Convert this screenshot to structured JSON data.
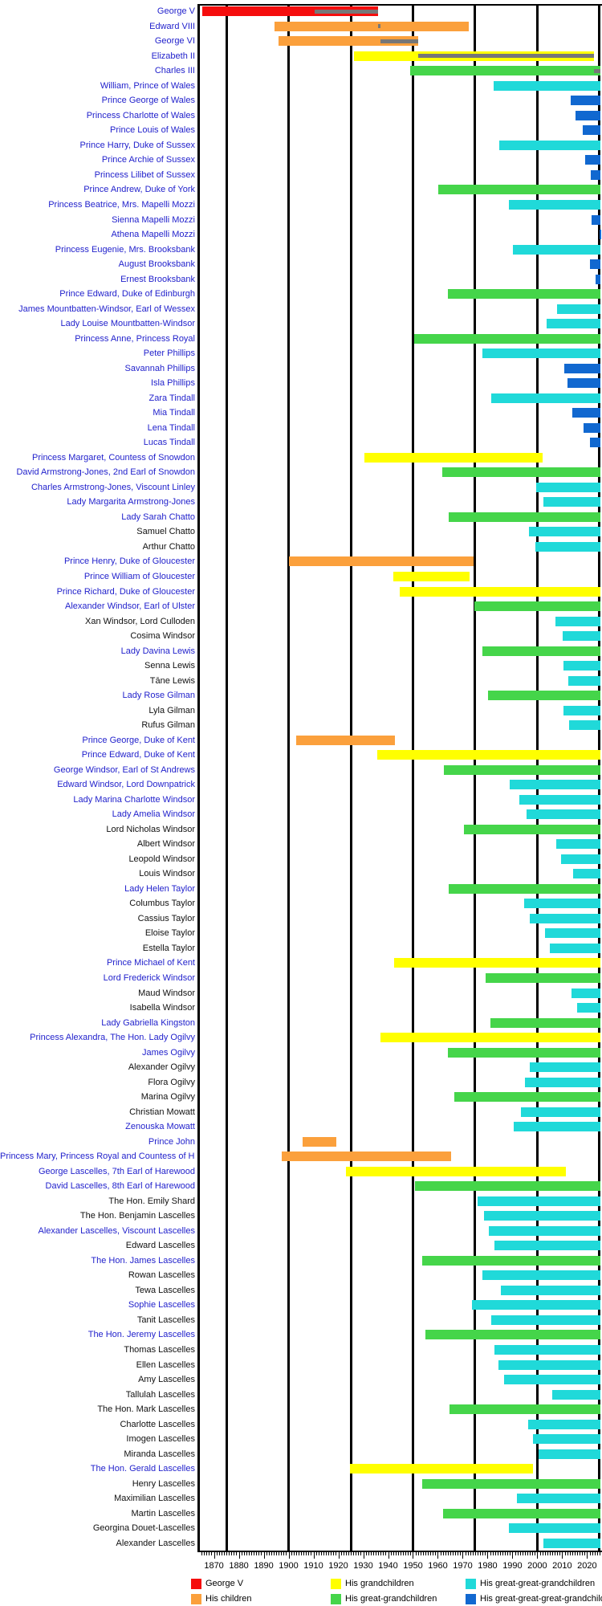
{
  "chart_data": {
    "type": "timeline",
    "x_axis": {
      "range": [
        1864,
        2026
      ],
      "tick_labels": [
        "1870",
        "1880",
        "1890",
        "1900",
        "1910",
        "1920",
        "1930",
        "1940",
        "1950",
        "1960",
        "1970",
        "1980",
        "1990",
        "2000",
        "2010",
        "2020"
      ],
      "gridline_years": [
        1875,
        1900,
        1925,
        1950,
        1975,
        2000,
        2025
      ],
      "minor_tick_step_years": 1
    },
    "alive_bar_end_year": 2025.5,
    "reign_overlay_color": "#777777",
    "legend": [
      {
        "label": "George V",
        "color": "#f50d0d"
      },
      {
        "label": "His children",
        "color": "#fba03c"
      },
      {
        "label": "His grandchildren",
        "color": "#ffff00"
      },
      {
        "label": "His great-grandchildren",
        "color": "#45d54a"
      },
      {
        "label": "His great-great-grandchildren",
        "color": "#20d9d9"
      },
      {
        "label": "His great-great-great-grandchildren",
        "color": "#1168d0"
      }
    ],
    "people": [
      {
        "name": "George V",
        "generation": 0,
        "born": 1865.4,
        "died": 1936.05,
        "linked": true,
        "reign": [
          1910.35,
          1936.05
        ]
      },
      {
        "name": "Edward VIII",
        "generation": 1,
        "born": 1894.45,
        "died": 1972.4,
        "linked": true,
        "reign": [
          1936.05,
          1936.92
        ]
      },
      {
        "name": "George VI",
        "generation": 1,
        "born": 1895.95,
        "died": 1952.1,
        "linked": true,
        "reign": [
          1936.92,
          1952.1
        ]
      },
      {
        "name": "Elizabeth II",
        "generation": 2,
        "born": 1926.3,
        "died": 2022.7,
        "linked": true,
        "reign": [
          1952.1,
          2022.7
        ]
      },
      {
        "name": "Charles III",
        "generation": 3,
        "born": 1948.85,
        "died": null,
        "linked": true,
        "reign": [
          2022.7,
          null
        ]
      },
      {
        "name": "William, Prince of Wales",
        "generation": 4,
        "born": 1982.45,
        "died": null,
        "linked": true
      },
      {
        "name": "Prince George of Wales",
        "generation": 5,
        "born": 2013.55,
        "died": null,
        "linked": true
      },
      {
        "name": "Princess Charlotte of Wales",
        "generation": 5,
        "born": 2015.35,
        "died": null,
        "linked": true
      },
      {
        "name": "Prince Louis of Wales",
        "generation": 5,
        "born": 2018.3,
        "died": null,
        "linked": true
      },
      {
        "name": "Prince Harry, Duke of Sussex",
        "generation": 4,
        "born": 1984.7,
        "died": null,
        "linked": true
      },
      {
        "name": "Prince Archie of Sussex",
        "generation": 5,
        "born": 2019.35,
        "died": null,
        "linked": true
      },
      {
        "name": "Princess Lilibet of Sussex",
        "generation": 5,
        "born": 2021.4,
        "died": null,
        "linked": true
      },
      {
        "name": "Prince Andrew, Duke of York",
        "generation": 3,
        "born": 1960.1,
        "died": null,
        "linked": true
      },
      {
        "name": "Princess Beatrice, Mrs. Mapelli Mozzi",
        "generation": 4,
        "born": 1988.6,
        "died": null,
        "linked": true
      },
      {
        "name": "Sienna Mapelli Mozzi",
        "generation": 5,
        "born": 2021.7,
        "died": null,
        "linked": true
      },
      {
        "name": "Athena Mapelli Mozzi",
        "generation": 5,
        "born": 2025.05,
        "died": null,
        "linked": true
      },
      {
        "name": "Princess Eugenie, Mrs. Brooksbank",
        "generation": 4,
        "born": 1990.2,
        "died": null,
        "linked": true
      },
      {
        "name": "August Brooksbank",
        "generation": 5,
        "born": 2021.1,
        "died": null,
        "linked": true
      },
      {
        "name": "Ernest Brooksbank",
        "generation": 5,
        "born": 2023.4,
        "died": null,
        "linked": true
      },
      {
        "name": "Prince Edward, Duke of Edinburgh",
        "generation": 3,
        "born": 1964.2,
        "died": null,
        "linked": true
      },
      {
        "name": "James Mountbatten-Windsor, Earl of Wessex",
        "generation": 4,
        "born": 2007.95,
        "died": null,
        "linked": true
      },
      {
        "name": "Lady Louise Mountbatten-Windsor",
        "generation": 4,
        "born": 2003.85,
        "died": null,
        "linked": true
      },
      {
        "name": "Princess Anne, Princess Royal",
        "generation": 3,
        "born": 1950.6,
        "died": null,
        "linked": true
      },
      {
        "name": "Peter Phillips",
        "generation": 4,
        "born": 1977.85,
        "died": null,
        "linked": true
      },
      {
        "name": "Savannah Phillips",
        "generation": 5,
        "born": 2010.95,
        "died": null,
        "linked": true
      },
      {
        "name": "Isla Phillips",
        "generation": 5,
        "born": 2012.2,
        "died": null,
        "linked": true
      },
      {
        "name": "Zara Tindall",
        "generation": 4,
        "born": 1981.4,
        "died": null,
        "linked": true
      },
      {
        "name": "Mia Tindall",
        "generation": 5,
        "born": 2014.05,
        "died": null,
        "linked": true
      },
      {
        "name": "Lena Tindall",
        "generation": 5,
        "born": 2018.45,
        "died": null,
        "linked": true
      },
      {
        "name": "Lucas Tindall",
        "generation": 5,
        "born": 2021.2,
        "died": null,
        "linked": true
      },
      {
        "name": "Princess Margaret, Countess of Snowdon",
        "generation": 2,
        "born": 1930.6,
        "died": 2002.1,
        "linked": true
      },
      {
        "name": "David Armstrong-Jones, 2nd Earl of Snowdon",
        "generation": 3,
        "born": 1961.85,
        "died": null,
        "linked": true
      },
      {
        "name": "Charles Armstrong-Jones, Viscount Linley",
        "generation": 4,
        "born": 1999.5,
        "died": null,
        "linked": true
      },
      {
        "name": "Lady Margarita Armstrong-Jones",
        "generation": 4,
        "born": 2002.4,
        "died": null,
        "linked": true
      },
      {
        "name": "Lady Sarah Chatto",
        "generation": 3,
        "born": 1964.35,
        "died": null,
        "linked": true
      },
      {
        "name": "Samuel Chatto",
        "generation": 4,
        "born": 1996.5,
        "died": null,
        "linked": false
      },
      {
        "name": "Arthur Chatto",
        "generation": 4,
        "born": 1999.1,
        "died": null,
        "linked": false
      },
      {
        "name": "Prince Henry, Duke of Gloucester",
        "generation": 1,
        "born": 1900.2,
        "died": 1974.45,
        "linked": true
      },
      {
        "name": "Prince William of Gloucester",
        "generation": 2,
        "born": 1941.95,
        "died": 1972.65,
        "linked": true
      },
      {
        "name": "Prince Richard, Duke of Gloucester",
        "generation": 2,
        "born": 1944.65,
        "died": null,
        "linked": true
      },
      {
        "name": "Alexander Windsor, Earl of Ulster",
        "generation": 3,
        "born": 1974.8,
        "died": null,
        "linked": true
      },
      {
        "name": "Xan Windsor, Lord Culloden",
        "generation": 4,
        "born": 2007.2,
        "died": null,
        "linked": false
      },
      {
        "name": "Cosima Windsor",
        "generation": 4,
        "born": 2010.1,
        "died": null,
        "linked": false
      },
      {
        "name": "Lady Davina Lewis",
        "generation": 3,
        "born": 1977.85,
        "died": null,
        "linked": true
      },
      {
        "name": "Senna Lewis",
        "generation": 4,
        "born": 2010.45,
        "died": null,
        "linked": false
      },
      {
        "name": "Tāne Lewis",
        "generation": 4,
        "born": 2012.35,
        "died": null,
        "linked": false
      },
      {
        "name": "Lady Rose Gilman",
        "generation": 3,
        "born": 1980.15,
        "died": null,
        "linked": true
      },
      {
        "name": "Lyla Gilman",
        "generation": 4,
        "born": 2010.35,
        "died": null,
        "linked": false
      },
      {
        "name": "Rufus Gilman",
        "generation": 4,
        "born": 2012.8,
        "died": null,
        "linked": false
      },
      {
        "name": "Prince George, Duke of Kent",
        "generation": 1,
        "born": 1902.95,
        "died": 1942.6,
        "linked": true
      },
      {
        "name": "Prince Edward, Duke of Kent",
        "generation": 2,
        "born": 1935.75,
        "died": null,
        "linked": true
      },
      {
        "name": "George Windsor, Earl of St Andrews",
        "generation": 3,
        "born": 1962.45,
        "died": null,
        "linked": true
      },
      {
        "name": "Edward Windsor, Lord Downpatrick",
        "generation": 4,
        "born": 1988.9,
        "died": null,
        "linked": true
      },
      {
        "name": "Lady Marina Charlotte Windsor",
        "generation": 4,
        "born": 1992.75,
        "died": null,
        "linked": true
      },
      {
        "name": "Lady Amelia Windsor",
        "generation": 4,
        "born": 1995.6,
        "died": null,
        "linked": true
      },
      {
        "name": "Lord Nicholas Windsor",
        "generation": 3,
        "born": 1970.5,
        "died": null,
        "linked": false
      },
      {
        "name": "Albert Windsor",
        "generation": 4,
        "born": 2007.7,
        "died": null,
        "linked": false
      },
      {
        "name": "Leopold Windsor",
        "generation": 4,
        "born": 2009.7,
        "died": null,
        "linked": false
      },
      {
        "name": "Louis Windsor",
        "generation": 4,
        "born": 2014.35,
        "died": null,
        "linked": false
      },
      {
        "name": "Lady Helen Taylor",
        "generation": 3,
        "born": 1964.3,
        "died": null,
        "linked": true
      },
      {
        "name": "Columbus Taylor",
        "generation": 4,
        "born": 1994.6,
        "died": null,
        "linked": false
      },
      {
        "name": "Cassius Taylor",
        "generation": 4,
        "born": 1996.95,
        "died": null,
        "linked": false
      },
      {
        "name": "Eloise Taylor",
        "generation": 4,
        "born": 2003.2,
        "died": null,
        "linked": false
      },
      {
        "name": "Estella Taylor",
        "generation": 4,
        "born": 2004.9,
        "died": null,
        "linked": false
      },
      {
        "name": "Prince Michael of Kent",
        "generation": 2,
        "born": 1942.5,
        "died": null,
        "linked": true
      },
      {
        "name": "Lord Frederick Windsor",
        "generation": 3,
        "born": 1979.3,
        "died": null,
        "linked": true
      },
      {
        "name": "Maud Windsor",
        "generation": 4,
        "born": 2013.6,
        "died": null,
        "linked": false
      },
      {
        "name": "Isabella Windsor",
        "generation": 4,
        "born": 2016.05,
        "died": null,
        "linked": false
      },
      {
        "name": "Lady Gabriella Kingston",
        "generation": 3,
        "born": 1981.3,
        "died": null,
        "linked": true
      },
      {
        "name": "Princess Alexandra, The Hon. Lady Ogilvy",
        "generation": 2,
        "born": 1936.95,
        "died": null,
        "linked": true
      },
      {
        "name": "James Ogilvy",
        "generation": 3,
        "born": 1964.1,
        "died": null,
        "linked": true
      },
      {
        "name": "Alexander Ogilvy",
        "generation": 4,
        "born": 1996.9,
        "died": null,
        "linked": false
      },
      {
        "name": "Flora Ogilvy",
        "generation": 4,
        "born": 1994.9,
        "died": null,
        "linked": false
      },
      {
        "name": "Marina Ogilvy",
        "generation": 3,
        "born": 1966.55,
        "died": null,
        "linked": false
      },
      {
        "name": "Christian Mowatt",
        "generation": 4,
        "born": 1993.45,
        "died": null,
        "linked": false
      },
      {
        "name": "Zenouska Mowatt",
        "generation": 4,
        "born": 1990.4,
        "died": null,
        "linked": true
      },
      {
        "name": "Prince John",
        "generation": 1,
        "born": 1905.5,
        "died": 1919.05,
        "linked": true
      },
      {
        "name": "Princess Mary, Princess Royal and Countess of Harewood",
        "generation": 1,
        "born": 1897.3,
        "died": 1965.2,
        "linked": true
      },
      {
        "name": "George Lascelles, 7th Earl of Harewood",
        "generation": 2,
        "born": 1923.1,
        "died": 2011.5,
        "linked": true
      },
      {
        "name": "David Lascelles, 8th Earl of Harewood",
        "generation": 3,
        "born": 1950.8,
        "died": null,
        "linked": true
      },
      {
        "name": "The Hon. Emily Shard",
        "generation": 4,
        "born": 1975.85,
        "died": null,
        "linked": false
      },
      {
        "name": "The Hon. Benjamin Lascelles",
        "generation": 4,
        "born": 1978.7,
        "died": null,
        "linked": false
      },
      {
        "name": "Alexander Lascelles, Viscount Lascelles",
        "generation": 4,
        "born": 1980.35,
        "died": null,
        "linked": true
      },
      {
        "name": "Edward Lascelles",
        "generation": 4,
        "born": 1982.85,
        "died": null,
        "linked": false
      },
      {
        "name": "The Hon. James Lascelles",
        "generation": 3,
        "born": 1953.75,
        "died": null,
        "linked": true
      },
      {
        "name": "Rowan Lascelles",
        "generation": 4,
        "born": 1977.8,
        "died": null,
        "linked": false
      },
      {
        "name": "Tewa Lascelles",
        "generation": 4,
        "born": 1985.45,
        "died": null,
        "linked": false
      },
      {
        "name": "Sophie Lascelles",
        "generation": 4,
        "born": 1973.8,
        "died": null,
        "linked": true
      },
      {
        "name": "Tanit Lascelles",
        "generation": 4,
        "born": 1981.6,
        "died": null,
        "linked": false
      },
      {
        "name": "The Hon. Jeremy Lascelles",
        "generation": 3,
        "born": 1955.1,
        "died": null,
        "linked": true
      },
      {
        "name": "Thomas Lascelles",
        "generation": 4,
        "born": 1982.7,
        "died": null,
        "linked": false
      },
      {
        "name": "Ellen Lascelles",
        "generation": 4,
        "born": 1984.4,
        "died": null,
        "linked": false
      },
      {
        "name": "Amy Lascelles",
        "generation": 4,
        "born": 1986.5,
        "died": null,
        "linked": false
      },
      {
        "name": "Tallulah Lascelles",
        "generation": 4,
        "born": 2005.9,
        "died": null,
        "linked": false
      },
      {
        "name": "The Hon. Mark Lascelles",
        "generation": 3,
        "born": 1964.6,
        "died": null,
        "linked": false
      },
      {
        "name": "Charlotte Lascelles",
        "generation": 4,
        "born": 1996.2,
        "died": null,
        "linked": false
      },
      {
        "name": "Imogen Lascelles",
        "generation": 4,
        "born": 1998.1,
        "died": null,
        "linked": false
      },
      {
        "name": "Miranda Lascelles",
        "generation": 4,
        "born": 2000.5,
        "died": null,
        "linked": false
      },
      {
        "name": "The Hon. Gerald Lascelles",
        "generation": 2,
        "born": 1924.6,
        "died": 1998.1,
        "linked": true
      },
      {
        "name": "Henry Lascelles",
        "generation": 3,
        "born": 1953.8,
        "died": null,
        "linked": false
      },
      {
        "name": "Maximilian Lascelles",
        "generation": 4,
        "born": 1991.9,
        "died": null,
        "linked": false
      },
      {
        "name": "Martin Lascelles",
        "generation": 3,
        "born": 1962.1,
        "died": null,
        "linked": false
      },
      {
        "name": "Georgina Douet-Lascelles",
        "generation": 4,
        "born": 1988.7,
        "died": null,
        "linked": false
      },
      {
        "name": "Alexander Lascelles",
        "generation": 4,
        "born": 2002.4,
        "died": null,
        "linked": false
      }
    ]
  },
  "text_colors": {
    "linked_name": "#2222cc",
    "plain_name": "#111111",
    "axis_label": "#000000"
  }
}
